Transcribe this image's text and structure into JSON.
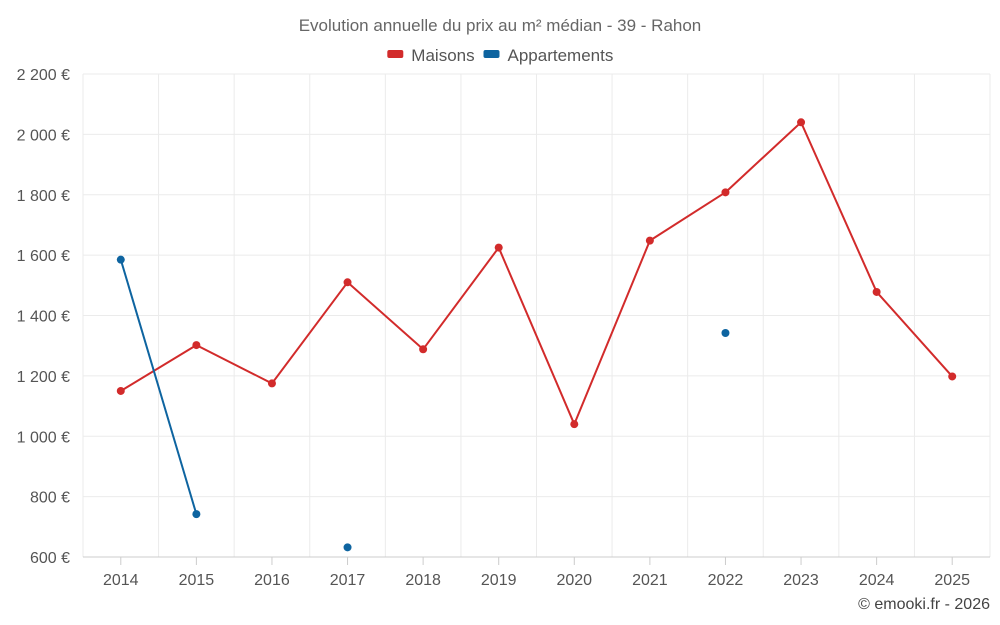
{
  "chart_data": {
    "type": "line",
    "title": "Evolution annuelle du prix au m² médian - 39 - Rahon",
    "categories": [
      "2014",
      "2015",
      "2016",
      "2017",
      "2018",
      "2019",
      "2020",
      "2021",
      "2022",
      "2023",
      "2024",
      "2025"
    ],
    "ylim": [
      600,
      2200
    ],
    "yticks": [
      600,
      800,
      1000,
      1200,
      1400,
      1600,
      1800,
      2000,
      2200
    ],
    "ytick_labels": [
      "600 €",
      "800 €",
      "1 000 €",
      "1 200 €",
      "1 400 €",
      "1 600 €",
      "1 800 €",
      "2 000 €",
      "2 200 €"
    ],
    "xlabel": "",
    "ylabel": "",
    "grid": true,
    "legend_position": "top-center",
    "series": [
      {
        "name": "Maisons",
        "color": "#d22b2b",
        "values": [
          1150,
          1302,
          1175,
          1510,
          1288,
          1625,
          1040,
          1648,
          1808,
          2040,
          1478,
          1198
        ]
      },
      {
        "name": "Appartements",
        "color": "#0e64a0",
        "values": [
          1585,
          742,
          null,
          632,
          null,
          null,
          null,
          null,
          1342,
          null,
          null,
          null
        ]
      }
    ]
  },
  "credit": "© emooki.fr - 2026"
}
